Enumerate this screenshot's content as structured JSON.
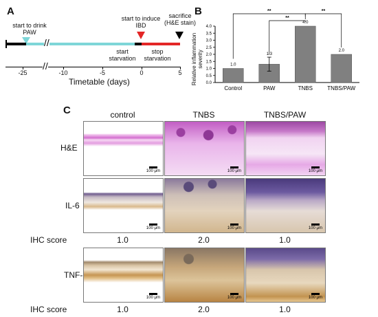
{
  "panels": {
    "a": "A",
    "b": "B",
    "c": "C"
  },
  "timeline": {
    "annotations": {
      "start_drink": "start to drink\nPAW",
      "start_induce": "start to induce\nIBD",
      "sacrifice": "sacrifice\n(H&E stain)",
      "start_starvation": "start\nstarvation",
      "stop_starvation": "stop\nstarvation"
    },
    "ticks": [
      "-25",
      "-10",
      "-5",
      "0",
      "5"
    ],
    "xlabel": "Timetable (days)"
  },
  "chart_data": {
    "type": "bar",
    "categories": [
      "Control",
      "PAW",
      "TNBS",
      "TNBS/PAW"
    ],
    "values": [
      1.0,
      1.3,
      4.0,
      2.0
    ],
    "value_labels": [
      "1.0",
      "1.3",
      "4.0",
      "2.0"
    ],
    "errors": [
      0.02,
      0.5,
      0.03,
      0.02
    ],
    "ylabel": "Relative inflammation\nseverity",
    "ylim": [
      0,
      4.0
    ],
    "yticks": [
      "0.0",
      "0.5",
      "1.0",
      "1.5",
      "2.0",
      "2.5",
      "3.0",
      "3.5",
      "4.0"
    ],
    "significance": [
      "**",
      "**",
      "**"
    ],
    "bar_color": "#808080"
  },
  "histology": {
    "columns": [
      "control",
      "TNBS",
      "TNBS/PAW"
    ],
    "rows": [
      "H&E",
      "IL-6",
      "TNF-α"
    ],
    "scale_label": "100 μm",
    "score_label": "IHC score",
    "scores_il6": [
      "1.0",
      "2.0",
      "1.0"
    ],
    "scores_tnf": [
      "1.0",
      "2.0",
      "1.0"
    ]
  },
  "colors": {
    "cyan": "#7ed6d8",
    "red": "#e32626",
    "he_pink": "#d36fd0",
    "ihc_purple": "#6c5aa0",
    "ihc_brown": "#b6803a"
  }
}
